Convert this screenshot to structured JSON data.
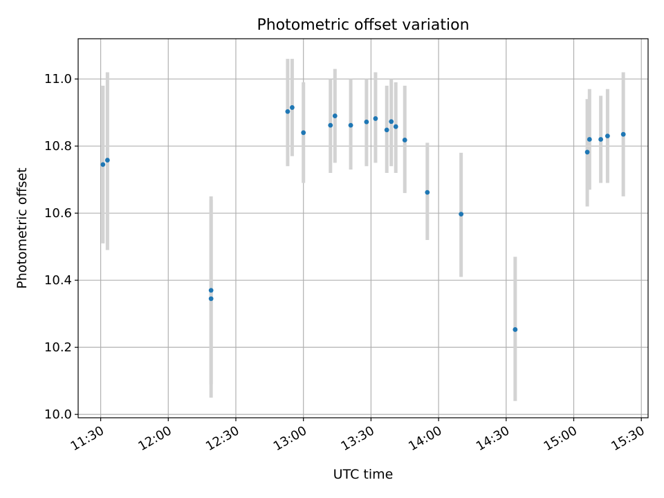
{
  "chart_data": {
    "type": "scatter",
    "title": "Photometric offset variation",
    "xlabel": "UTC time",
    "ylabel": "Photometric offset",
    "x_ticks": [
      "11:30",
      "12:00",
      "12:30",
      "13:00",
      "13:30",
      "14:00",
      "14:30",
      "15:00",
      "15:30"
    ],
    "y_ticks": [
      "10.0",
      "10.2",
      "10.4",
      "10.6",
      "10.8",
      "11.0"
    ],
    "xlim": [
      "11:20",
      "15:33"
    ],
    "ylim": [
      9.99,
      11.12
    ],
    "grid": true,
    "colors": {
      "points": "#1f77b4",
      "errorbars": "#d3d3d3",
      "grid": "#b0b0b0"
    },
    "series": [
      {
        "points": [
          {
            "x": "11:31",
            "y": 10.745,
            "err_low": 10.51,
            "err_high": 10.98
          },
          {
            "x": "11:33",
            "y": 10.758,
            "err_low": 10.49,
            "err_high": 11.02
          },
          {
            "x": "12:19",
            "y": 10.37,
            "err_low": 10.09,
            "err_high": 10.65
          },
          {
            "x": "12:19",
            "y": 10.345,
            "err_low": 10.05,
            "err_high": 10.64
          },
          {
            "x": "12:53",
            "y": 10.903,
            "err_low": 10.74,
            "err_high": 11.06
          },
          {
            "x": "12:55",
            "y": 10.915,
            "err_low": 10.77,
            "err_high": 11.06
          },
          {
            "x": "13:00",
            "y": 10.84,
            "err_low": 10.69,
            "err_high": 10.99
          },
          {
            "x": "13:12",
            "y": 10.862,
            "err_low": 10.72,
            "err_high": 11.0
          },
          {
            "x": "13:14",
            "y": 10.89,
            "err_low": 10.75,
            "err_high": 11.03
          },
          {
            "x": "13:21",
            "y": 10.862,
            "err_low": 10.73,
            "err_high": 11.0
          },
          {
            "x": "13:28",
            "y": 10.872,
            "err_low": 10.74,
            "err_high": 11.0
          },
          {
            "x": "13:32",
            "y": 10.882,
            "err_low": 10.75,
            "err_high": 11.02
          },
          {
            "x": "13:37",
            "y": 10.848,
            "err_low": 10.72,
            "err_high": 10.98
          },
          {
            "x": "13:39",
            "y": 10.873,
            "err_low": 10.74,
            "err_high": 11.0
          },
          {
            "x": "13:41",
            "y": 10.858,
            "err_low": 10.72,
            "err_high": 10.99
          },
          {
            "x": "13:45",
            "y": 10.818,
            "err_low": 10.66,
            "err_high": 10.98
          },
          {
            "x": "13:55",
            "y": 10.662,
            "err_low": 10.52,
            "err_high": 10.81
          },
          {
            "x": "14:10",
            "y": 10.597,
            "err_low": 10.41,
            "err_high": 10.78
          },
          {
            "x": "14:34",
            "y": 10.253,
            "err_low": 10.04,
            "err_high": 10.47
          },
          {
            "x": "15:06",
            "y": 10.782,
            "err_low": 10.62,
            "err_high": 10.94
          },
          {
            "x": "15:07",
            "y": 10.82,
            "err_low": 10.67,
            "err_high": 10.97
          },
          {
            "x": "15:12",
            "y": 10.82,
            "err_low": 10.69,
            "err_high": 10.95
          },
          {
            "x": "15:15",
            "y": 10.83,
            "err_low": 10.69,
            "err_high": 10.97
          },
          {
            "x": "15:22",
            "y": 10.835,
            "err_low": 10.65,
            "err_high": 11.02
          }
        ]
      }
    ]
  }
}
